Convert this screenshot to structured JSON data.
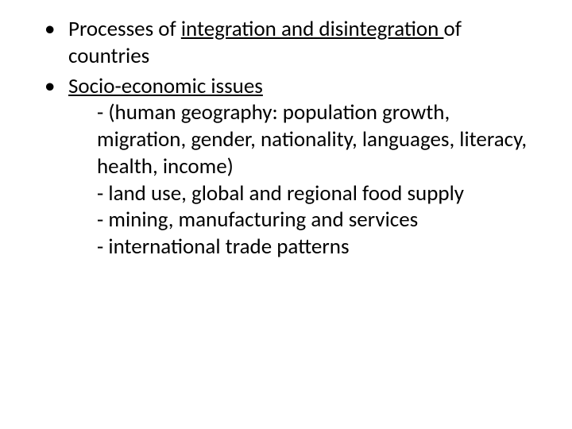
{
  "slide": {
    "font_family": "Calibri",
    "font_size_pt": 27,
    "text_color": "#000000",
    "background_color": "#ffffff",
    "bullets": [
      {
        "pre": "Processes of ",
        "underlined": "integration and disintegration ",
        "post": "of countries"
      },
      {
        "pre": "",
        "underlined": "Socio-economic issues",
        "post": "",
        "sublines": [
          "- (human geography: population growth, migration, gender, nationality, languages, literacy, health, income)",
          "- land use, global and regional food supply",
          "- mining, manufacturing and services",
          "- international trade patterns"
        ]
      }
    ]
  }
}
